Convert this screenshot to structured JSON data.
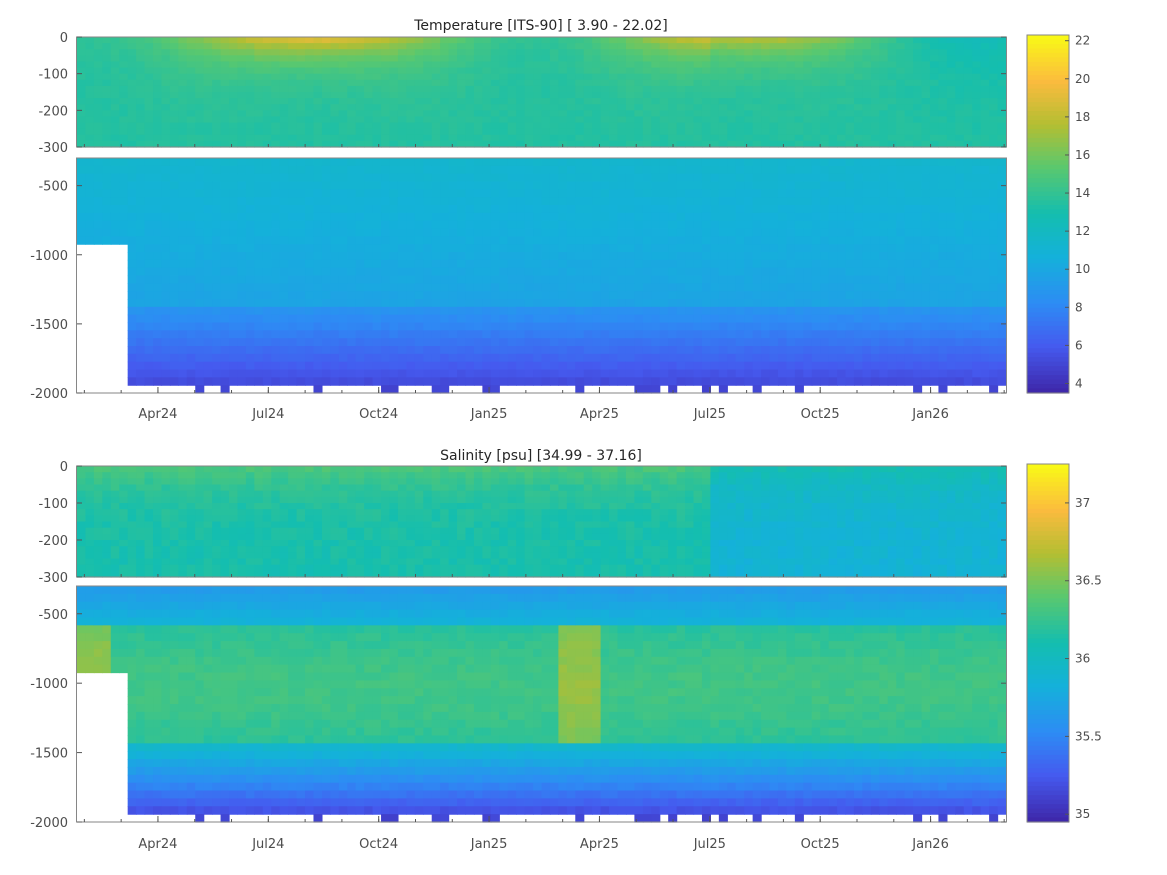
{
  "chart_data": [
    {
      "type": "heatmap",
      "title": "Temperature [ITS-90]   [ 3.90 - 22.02]",
      "variable": "temperature",
      "value_range": [
        3.9,
        22.02
      ],
      "colorbar_ticks": [
        4,
        6,
        8,
        10,
        12,
        14,
        16,
        18,
        20,
        22
      ],
      "colorbar_range": [
        3.5,
        22.3
      ],
      "colormap": "parula",
      "x_tick_labels": [
        "Apr24",
        "Jul24",
        "Oct24",
        "Jan25",
        "Apr25",
        "Jul25",
        "Oct25",
        "Jan26"
      ],
      "upper_panel": {
        "depth_range": [
          -300,
          0
        ],
        "y_ticks": [
          0,
          -100,
          -200,
          -300
        ]
      },
      "lower_panel": {
        "depth_range": [
          -2000,
          -300
        ],
        "y_ticks": [
          -500,
          -1000,
          -1500,
          -2000
        ]
      }
    },
    {
      "type": "heatmap",
      "title": "Salinity [psu]   [34.99 - 37.16]",
      "variable": "salinity",
      "value_range": [
        34.99,
        37.16
      ],
      "colorbar_ticks": [
        35,
        35.5,
        36,
        36.5,
        37
      ],
      "colorbar_range": [
        34.95,
        37.25
      ],
      "colormap": "parula",
      "x_tick_labels": [
        "Apr24",
        "Jul24",
        "Oct24",
        "Jan25",
        "Apr25",
        "Jul25",
        "Oct25",
        "Jan26"
      ],
      "upper_panel": {
        "depth_range": [
          -300,
          0
        ],
        "y_ticks": [
          0,
          -100,
          -200,
          -300
        ]
      },
      "lower_panel": {
        "depth_range": [
          -2000,
          -300
        ],
        "y_ticks": [
          -500,
          -1000,
          -1500,
          -2000
        ]
      }
    }
  ]
}
